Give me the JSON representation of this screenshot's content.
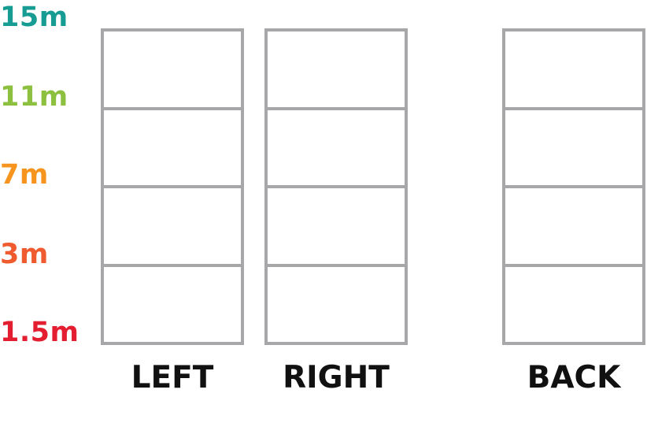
{
  "distances": [
    {
      "label": "15m",
      "color": "#179c93"
    },
    {
      "label": "11m",
      "color": "#8dc03f"
    },
    {
      "label": "7m",
      "color": "#f7941d"
    },
    {
      "label": "3m",
      "color": "#ef5a2f"
    },
    {
      "label": "1.5m",
      "color": "#e31e30"
    }
  ],
  "columns": [
    {
      "label": "LEFT"
    },
    {
      "label": "RIGHT"
    },
    {
      "label": "BACK"
    }
  ],
  "grid_color": "#a7a7a9"
}
